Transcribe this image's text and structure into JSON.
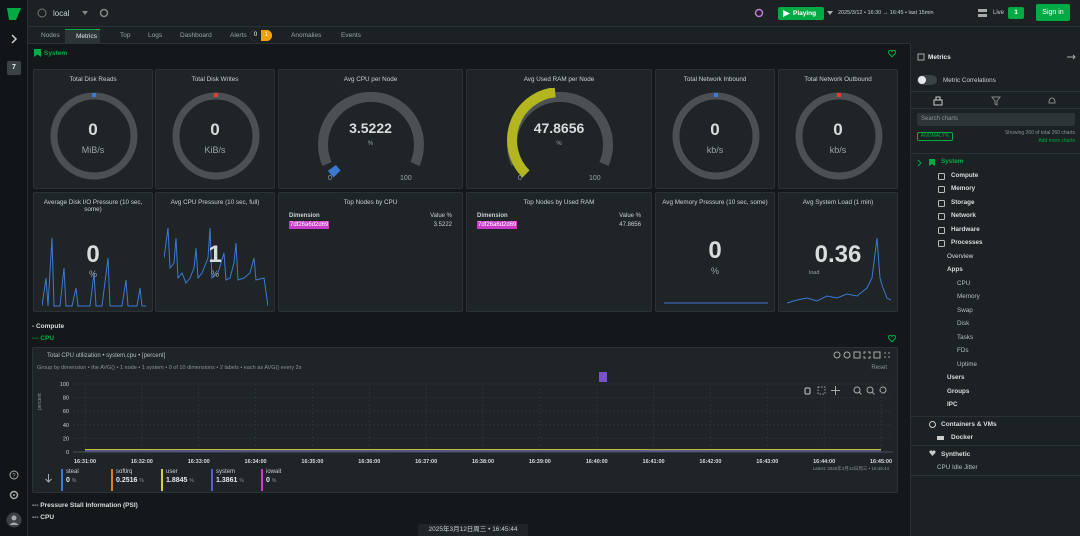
{
  "colors": {
    "accent": "#00ab44",
    "bg": "#14181a",
    "panel": "#1f2427",
    "gauge_blue": "#3c7ad1",
    "gauge_yellow": "#b4b620",
    "magenta": "#c73cc7"
  },
  "header": {
    "space": "local",
    "playing": "Playing",
    "timeinfo": "2025/3/12 • 16:30 → 16:45 • last 15min",
    "live_label": "Live",
    "live_count": "1",
    "signin": "Sign in",
    "side_badge": "7"
  },
  "tabs": [
    {
      "label": "Nodes"
    },
    {
      "label": "Metrics"
    },
    {
      "label": "Top"
    },
    {
      "label": "Logs"
    },
    {
      "label": "Dashboard"
    },
    {
      "label": "Alerts"
    },
    {
      "label": "Anomalies"
    },
    {
      "label": "Events"
    }
  ],
  "alert_counts": {
    "a": "0",
    "b": "1"
  },
  "section": {
    "system": "System",
    "compute": "- Compute",
    "cpu": "--- CPU",
    "psi": "--- Pressure Stall Information (PSI)",
    "psi_cpu": "--- CPU"
  },
  "gauges_row1": [
    {
      "title": "Total Disk Reads",
      "value": "0",
      "unit": "MiB/s"
    },
    {
      "title": "Total Disk Writes",
      "value": "0",
      "unit": "KiB/s"
    },
    {
      "title": "Avg CPU per Node",
      "value": "3.5222",
      "unit": "%",
      "min": "0",
      "max": "100",
      "level": 3.5222
    },
    {
      "title": "Avg Used RAM per Node",
      "value": "47.8656",
      "unit": "%",
      "min": "0",
      "max": "100",
      "level": 47.8656
    },
    {
      "title": "Total Network Inbound",
      "value": "0",
      "unit": "kb/s"
    },
    {
      "title": "Total Network Outbound",
      "value": "0",
      "unit": "kb/s"
    }
  ],
  "row2": {
    "disk_pressure": {
      "title": "Average Disk I/O Pressure (10 sec, some)",
      "value": "0",
      "unit": "%"
    },
    "cpu_pressure": {
      "title": "Avg CPU Pressure (10 sec, full)",
      "value": "1",
      "unit": "%"
    },
    "top_cpu": {
      "title": "Top Nodes by CPU",
      "col1": "Dimension",
      "col2": "Value %",
      "node": "7df26a6d2d69",
      "value": "3.5222"
    },
    "top_ram": {
      "title": "Top Nodes by Used RAM",
      "col1": "Dimension",
      "col2": "Value %",
      "node": "7df26a6d2d69",
      "value": "47.8656"
    },
    "mem_pressure": {
      "title": "Avg Memory Pressure (10 sec, some)",
      "value": "0",
      "unit": "%"
    },
    "sys_load": {
      "title": "Avg System Load (1 min)",
      "value": "0.36",
      "unit": "load"
    }
  },
  "cpu_chart": {
    "title": "Total CPU utilization • system.cpu • [percent]",
    "groupby": "Group by dimension • the AVG() • 1 node • 1 system • 0 of 10 dimensions • 2 labels • each as AVG() every 2s",
    "reset": "Reset",
    "ylabel": "percent",
    "ymax": "100",
    "yticks": [
      "100",
      "80",
      "60",
      "40",
      "20",
      "0"
    ],
    "xticks": [
      "16:31:00",
      "16:32:00",
      "16:33:00",
      "16:34:00",
      "16:35:00",
      "16:36:00",
      "16:37:00",
      "16:38:00",
      "16:39:00",
      "16:40:00",
      "16:41:00",
      "16:42:00",
      "16:43:00",
      "16:44:00",
      "16:45:00"
    ],
    "latest": "Latest: 2025年3月12日周三 • 16:45:44",
    "legend": [
      {
        "name": "steal",
        "value": "0",
        "unit": "%",
        "color": "#3c7ad1"
      },
      {
        "name": "softirq",
        "value": "0.2516",
        "unit": "%",
        "color": "#e07a23"
      },
      {
        "name": "user",
        "value": "1.8845",
        "unit": "%",
        "color": "#d6d23a"
      },
      {
        "name": "system",
        "value": "1.3861",
        "unit": "%",
        "color": "#5b5bd6"
      },
      {
        "name": "iowait",
        "value": "0",
        "unit": "%",
        "color": "#c73cc7"
      }
    ]
  },
  "chart_data": {
    "type": "area",
    "title": "Total CPU utilization • system.cpu • [percent]",
    "ylabel": "percent",
    "ylim": [
      0,
      100
    ],
    "x": [
      "16:31:00",
      "16:32:00",
      "16:33:00",
      "16:34:00",
      "16:35:00",
      "16:36:00",
      "16:37:00",
      "16:38:00",
      "16:39:00",
      "16:40:00",
      "16:41:00",
      "16:42:00",
      "16:43:00",
      "16:44:00",
      "16:45:00"
    ],
    "series": [
      {
        "name": "user",
        "values": [
          1.9,
          1.8,
          1.9,
          1.9,
          1.8,
          1.9,
          1.9,
          1.8,
          1.9,
          1.9,
          1.8,
          1.9,
          1.9,
          1.8,
          1.9
        ]
      },
      {
        "name": "system",
        "values": [
          1.4,
          1.4,
          1.3,
          1.4,
          1.4,
          1.4,
          1.3,
          1.4,
          1.4,
          1.4,
          1.3,
          1.4,
          1.4,
          1.4,
          1.4
        ]
      },
      {
        "name": "softirq",
        "values": [
          0.25,
          0.25,
          0.25,
          0.25,
          0.25,
          0.25,
          0.25,
          0.25,
          0.25,
          0.25,
          0.25,
          0.25,
          0.25,
          0.25,
          0.25
        ]
      }
    ]
  },
  "footer_time": "2025年3月12日周三 • 16:45:44",
  "right_panel": {
    "title": "Metrics",
    "correlations": "Metric Correlations",
    "search_placeholder": "Search charts",
    "anomaly": "ANOMALY%",
    "showing": "Showing 260 of total 260 charts",
    "add_more": "Add more charts",
    "items": [
      {
        "label": "System",
        "level": 0
      },
      {
        "label": "Compute",
        "level": 1
      },
      {
        "label": "Memory",
        "level": 1
      },
      {
        "label": "Storage",
        "level": 1
      },
      {
        "label": "Network",
        "level": 1
      },
      {
        "label": "Hardware",
        "level": 1
      },
      {
        "label": "Processes",
        "level": 1
      },
      {
        "label": "Overview",
        "level": 2
      },
      {
        "label": "Apps",
        "level": 2
      },
      {
        "label": "CPU",
        "level": 3
      },
      {
        "label": "Memory",
        "level": 3
      },
      {
        "label": "Swap",
        "level": 3
      },
      {
        "label": "Disk",
        "level": 3
      },
      {
        "label": "Tasks",
        "level": 3
      },
      {
        "label": "FDs",
        "level": 3
      },
      {
        "label": "Uptime",
        "level": 3
      },
      {
        "label": "Users",
        "level": 2
      },
      {
        "label": "Groups",
        "level": 2
      },
      {
        "label": "IPC",
        "level": 2
      }
    ],
    "containers": "Containers & VMs",
    "docker": "Docker",
    "synthetic": "Synthetic",
    "cpu_idle": "CPU Idle Jitter"
  }
}
